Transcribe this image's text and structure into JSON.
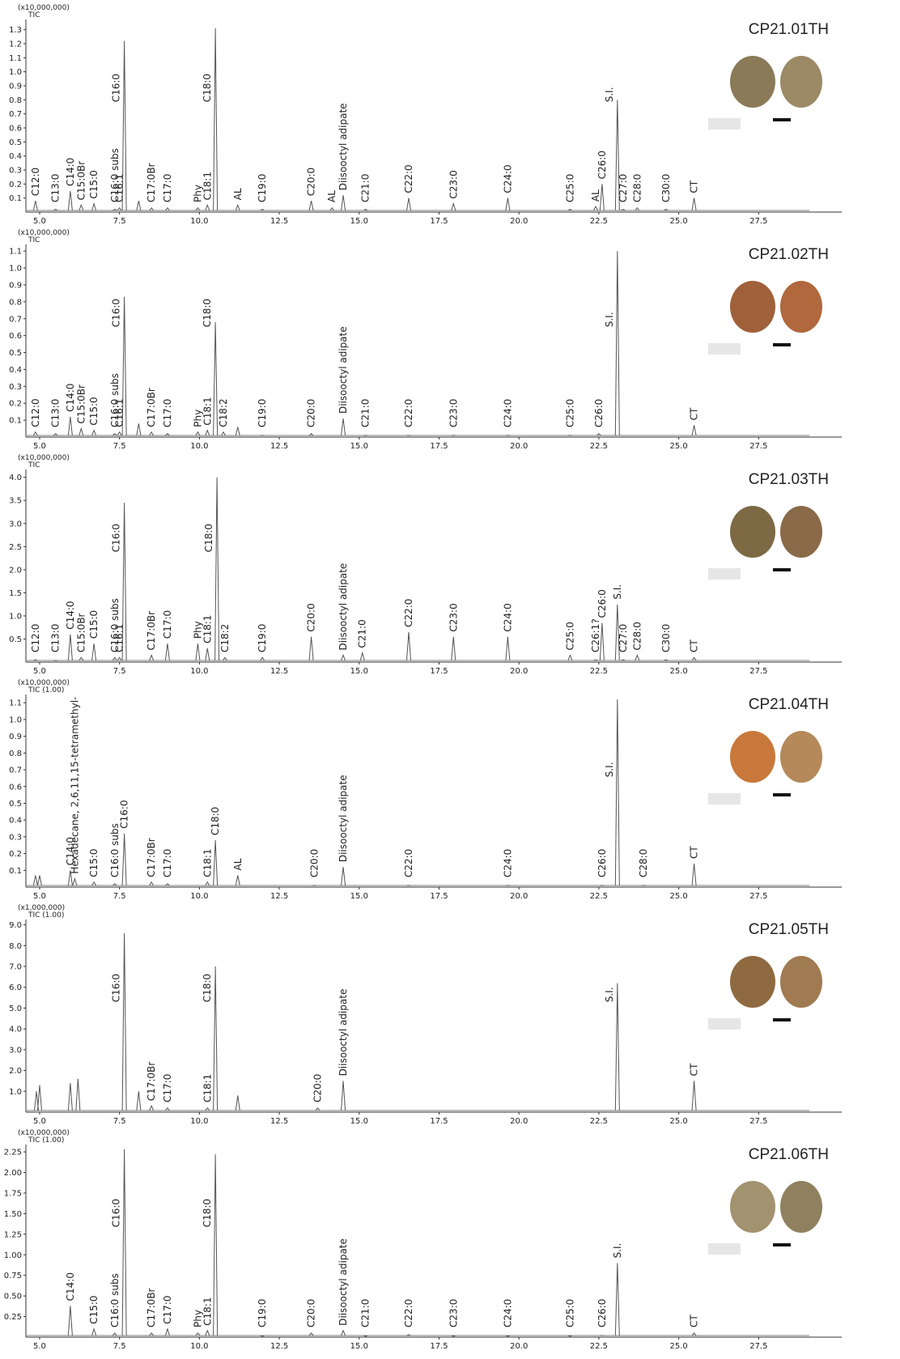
{
  "chart_data": [
    {
      "type": "line",
      "title": "CP21.01TH",
      "y_unit": "(x10,000,000)",
      "y_label": "TIC",
      "color": "#555555",
      "x": [
        4.87,
        5.5,
        5.96,
        6.3,
        6.7,
        7.35,
        7.5,
        7.65,
        8.1,
        8.5,
        9.0,
        9.95,
        10.25,
        10.5,
        11.2,
        11.97,
        13.5,
        14.15,
        14.5,
        15.2,
        16.55,
        17.95,
        19.65,
        21.6,
        22.4,
        22.6,
        23.08,
        23.26,
        23.7,
        24.6,
        25.48
      ],
      "values": [
        0.08,
        0.02,
        0.15,
        0.05,
        0.06,
        0.02,
        0.03,
        1.22,
        0.08,
        0.03,
        0.03,
        0.03,
        0.05,
        1.31,
        0.05,
        0.02,
        0.08,
        0.03,
        0.12,
        0.02,
        0.1,
        0.06,
        0.1,
        0.02,
        0.04,
        0.2,
        0.8,
        0.02,
        0.03,
        0.02,
        0.1
      ],
      "labels": [
        "C12:0",
        "C13:0",
        "C14:0",
        "C15:0Br",
        "C15:0",
        "C16:0 subs",
        "C16:1",
        "C16:0",
        null,
        "C17:0Br",
        "C17:0",
        "Phy",
        "C18:1",
        "C18:0",
        "AL",
        "C19:0",
        "C20:0",
        "AL",
        "Diisooctyl adipate",
        "C21:0",
        "C22:0",
        "C23:0",
        "C24:0",
        "C25:0",
        "AL",
        "C26:0",
        "S.I.",
        "C27:0",
        "C28:0",
        "C30:0",
        "CT"
      ],
      "xlim": [
        4.57,
        30.1
      ],
      "xticks": [
        {
          "value": 5,
          "label": "5.0"
        },
        7.5,
        {
          "value": 10,
          "label": "10.0"
        },
        12.5,
        {
          "value": 15,
          "label": "15.0"
        },
        17.5,
        {
          "value": 20,
          "label": "20.0"
        },
        22.5,
        {
          "value": 25,
          "label": "25.0"
        },
        27.5
      ],
      "ylim": [
        0,
        1.35
      ],
      "yticks": [
        0.1,
        0.2,
        0.3,
        0.4,
        0.5,
        0.6,
        0.7,
        0.8,
        0.9,
        {
          "value": 1,
          "label": "1.0"
        },
        1.1,
        1.2,
        1.3
      ]
    },
    {
      "type": "line",
      "title": "CP21.02TH",
      "y_unit": "(x10,000,000)",
      "y_label": "TIC",
      "color": "#555555",
      "x": [
        4.87,
        5.5,
        5.96,
        6.3,
        6.7,
        7.35,
        7.5,
        7.65,
        8.1,
        8.5,
        9.0,
        9.95,
        10.25,
        10.5,
        10.75,
        11.2,
        11.97,
        13.5,
        14.5,
        15.2,
        16.55,
        17.95,
        19.65,
        21.6,
        22.5,
        23.08,
        25.48
      ],
      "values": [
        0.03,
        0.02,
        0.12,
        0.05,
        0.04,
        0.02,
        0.03,
        0.83,
        0.08,
        0.03,
        0.02,
        0.03,
        0.04,
        0.68,
        0.03,
        0.06,
        0.01,
        0.02,
        0.11,
        0.01,
        0.01,
        0.01,
        0.01,
        0.01,
        0.02,
        1.1,
        0.07
      ],
      "labels": [
        "C12:0",
        "C13:0",
        "C14:0",
        "C15:0Br",
        "C15:0",
        "C16:0 subs",
        "C16:1",
        "C16:0",
        null,
        "C17:0Br",
        "C17:0",
        "Phy",
        "C18:1",
        "C18:0",
        "C18:2",
        null,
        "C19:0",
        "C20:0",
        "Diisooctyl adipate",
        "C21:0",
        "C22:0",
        "C23:0",
        "C24:0",
        "C25:0",
        "C26:0",
        "S.I.",
        "CT"
      ],
      "xlim": [
        4.57,
        30.1
      ],
      "xticks": [
        {
          "value": 5,
          "label": "5.0"
        },
        7.5,
        {
          "value": 10,
          "label": "10.0"
        },
        12.5,
        {
          "value": 15,
          "label": "15.0"
        },
        17.5,
        {
          "value": 20,
          "label": "20.0"
        },
        22.5,
        {
          "value": 25,
          "label": "25.0"
        },
        27.5
      ],
      "ylim": [
        0,
        1.12
      ],
      "yticks": [
        0.1,
        0.2,
        0.3,
        0.4,
        0.5,
        0.6,
        0.7,
        0.8,
        0.9,
        {
          "value": 1,
          "label": "1.0"
        },
        1.1
      ]
    },
    {
      "type": "line",
      "title": "CP21.03TH",
      "y_unit": "(x10,000,000)",
      "y_label": "TIC",
      "color": "#555555",
      "x": [
        4.87,
        5.5,
        5.96,
        6.3,
        6.7,
        7.35,
        7.5,
        7.65,
        8.5,
        9.0,
        9.95,
        10.25,
        10.55,
        10.8,
        11.97,
        13.5,
        14.5,
        15.1,
        16.55,
        17.95,
        19.65,
        21.6,
        22.4,
        22.6,
        23.08,
        23.26,
        23.7,
        24.6,
        25.48
      ],
      "values": [
        0.05,
        0.03,
        0.6,
        0.1,
        0.4,
        0.1,
        0.1,
        3.45,
        0.15,
        0.4,
        0.4,
        0.3,
        4.0,
        0.1,
        0.1,
        0.55,
        0.15,
        0.2,
        0.65,
        0.55,
        0.55,
        0.15,
        0.05,
        0.85,
        1.25,
        0.05,
        0.15,
        0.05,
        0.1
      ],
      "labels": [
        "C12:0",
        "C13:0",
        "C14:0",
        "C15:0Br",
        "C15:0",
        "C16:0 subs",
        "C16:1",
        "C16:0",
        "C17:0Br",
        "C17:0",
        "Phy",
        "C18:1",
        "C18:0",
        "C18:2",
        "C19:0",
        "C20:0",
        "Diisooctyl adipate",
        "C21:0",
        "C22:0",
        "C23:0",
        "C24:0",
        "C25:0",
        "C26:1?",
        "C26:0",
        "S.I.",
        "C27:0",
        "C28:0",
        "C30:0",
        "CT"
      ],
      "xlim": [
        4.57,
        30.1
      ],
      "xticks": [
        {
          "value": 5,
          "label": "5.0"
        },
        7.5,
        {
          "value": 10,
          "label": "10.0"
        },
        12.5,
        {
          "value": 15,
          "label": "15.0"
        },
        17.5,
        {
          "value": 20,
          "label": "20.0"
        },
        22.5,
        {
          "value": 25,
          "label": "25.0"
        },
        27.5
      ],
      "ylim": [
        0,
        4.1
      ],
      "yticks": [
        0.5,
        {
          "value": 1,
          "label": "1.0"
        },
        1.5,
        {
          "value": 2,
          "label": "2.0"
        },
        2.5,
        {
          "value": 3,
          "label": "3.0"
        },
        3.5,
        {
          "value": 4,
          "label": "4.0"
        }
      ]
    },
    {
      "type": "line",
      "title": "CP21.04TH",
      "y_unit": "(x10,000,000)",
      "y_label": "TIC (1.00)",
      "color": "#555555",
      "x": [
        4.87,
        5.0,
        5.96,
        6.1,
        6.7,
        7.35,
        7.65,
        8.5,
        9.0,
        10.25,
        10.5,
        11.2,
        13.6,
        14.5,
        16.55,
        19.65,
        22.6,
        23.08,
        23.9,
        25.48
      ],
      "values": [
        0.07,
        0.07,
        0.1,
        0.05,
        0.03,
        0.02,
        0.32,
        0.03,
        0.02,
        0.03,
        0.28,
        0.07,
        0.01,
        0.12,
        0.01,
        0.01,
        0.01,
        1.12,
        0.01,
        0.14
      ],
      "labels": [
        null,
        null,
        "C14:0",
        "Hexadecane, 2,6,11,15-tetramethyl-",
        "C15:0",
        "C16:0 subs",
        "C16:0",
        "C17:0Br",
        "C17:0",
        "C18:1",
        "C18:0",
        "AL",
        "C20:0",
        "Diisooctyl adipate",
        "C22:0",
        "C24:0",
        "C26:0",
        "S.I.",
        "C28:0",
        "CT"
      ],
      "xlim": [
        4.57,
        30.1
      ],
      "xticks": [
        {
          "value": 5,
          "label": "5.0"
        },
        7.5,
        {
          "value": 10,
          "label": "10.0"
        },
        12.5,
        {
          "value": 15,
          "label": "15.0"
        },
        17.5,
        {
          "value": 20,
          "label": "20.0"
        },
        22.5,
        {
          "value": 25,
          "label": "25.0"
        },
        27.5
      ],
      "ylim": [
        0,
        1.13
      ],
      "yticks": [
        0.1,
        0.2,
        0.3,
        0.4,
        0.5,
        0.6,
        0.7,
        0.8,
        0.9,
        {
          "value": 1,
          "label": "1.0"
        },
        1.1
      ]
    },
    {
      "type": "line",
      "title": "CP21.05TH",
      "y_unit": "(x1,000,000)",
      "y_label": "TIC (1.00)",
      "color": "#555555",
      "x": [
        4.9,
        5.0,
        5.96,
        6.2,
        7.65,
        8.1,
        8.5,
        9.0,
        10.25,
        10.5,
        11.2,
        13.7,
        14.5,
        23.08,
        25.48
      ],
      "values": [
        1.0,
        1.3,
        1.4,
        1.6,
        8.6,
        1.0,
        0.3,
        0.2,
        0.2,
        7.0,
        0.8,
        0.2,
        1.5,
        6.2,
        1.5
      ],
      "labels": [
        null,
        null,
        null,
        null,
        "C16:0",
        null,
        "C17:0Br",
        "C17:0",
        "C18:1",
        "C18:0",
        null,
        "C20:0",
        "Diisooctyl adipate",
        "S.I.",
        "CT"
      ],
      "xlim": [
        4.57,
        30.1
      ],
      "xticks": [
        {
          "value": 5,
          "label": "5.0"
        },
        7.5,
        {
          "value": 10,
          "label": "10.0"
        },
        12.5,
        {
          "value": 15,
          "label": "15.0"
        },
        17.5,
        {
          "value": 20,
          "label": "20.0"
        },
        22.5,
        {
          "value": 25,
          "label": "25.0"
        },
        27.5
      ],
      "ylim": [
        0,
        9.1
      ],
      "yticks": [
        {
          "value": 1,
          "label": "1.0"
        },
        {
          "value": 2,
          "label": "2.0"
        },
        {
          "value": 3,
          "label": "3.0"
        },
        {
          "value": 4,
          "label": "4.0"
        },
        {
          "value": 5,
          "label": "5.0"
        },
        {
          "value": 6,
          "label": "6.0"
        },
        {
          "value": 7,
          "label": "7.0"
        },
        {
          "value": 8,
          "label": "8.0"
        },
        {
          "value": 9,
          "label": "9.0"
        }
      ]
    },
    {
      "type": "line",
      "title": "CP21.06TH",
      "y_unit": "(x10,000,000)",
      "y_label": "TIC (1.00)",
      "color": "#555555",
      "x": [
        5.96,
        6.7,
        7.35,
        7.65,
        8.5,
        9.0,
        9.95,
        10.25,
        10.5,
        11.97,
        13.5,
        14.5,
        15.2,
        16.55,
        17.95,
        19.65,
        21.6,
        22.6,
        23.08,
        25.48
      ],
      "values": [
        0.38,
        0.1,
        0.05,
        2.28,
        0.05,
        0.1,
        0.05,
        0.08,
        2.22,
        0.01,
        0.05,
        0.08,
        0.01,
        0.03,
        0.01,
        0.01,
        0.01,
        0.02,
        0.9,
        0.05
      ],
      "labels": [
        "C14:0",
        "C15:0",
        "C16:0 subs",
        "C16:0",
        "C17:0Br",
        "C17:0",
        "Phy",
        "C18:1",
        "C18:0",
        "C19:0",
        "C20:0",
        "Diisooctyl adipate",
        "C21:0",
        "C22:0",
        "C23:0",
        "C24:0",
        "C25:0",
        "C26:0",
        "S.I.",
        "CT"
      ],
      "xlim": [
        4.57,
        30.1
      ],
      "xticks": [
        {
          "value": 5,
          "label": "5.0"
        },
        7.5,
        {
          "value": 10,
          "label": "10.0"
        },
        12.5,
        {
          "value": 15,
          "label": "15.0"
        },
        17.5,
        {
          "value": 20,
          "label": "20.0"
        },
        22.5,
        {
          "value": 25,
          "label": "25.0"
        },
        27.5
      ],
      "ylim": [
        0,
        2.3
      ],
      "yticks": [
        {
          "value": 0.25,
          "label": "0.25"
        },
        {
          "value": 0.5,
          "label": "0.50"
        },
        {
          "value": 0.75,
          "label": "0.75"
        },
        {
          "value": 1,
          "label": "1.00"
        },
        {
          "value": 1.25,
          "label": "1.25"
        },
        {
          "value": 1.5,
          "label": "1.50"
        },
        {
          "value": 1.75,
          "label": "1.75"
        },
        {
          "value": 2,
          "label": "2.00"
        },
        {
          "value": 2.25,
          "label": "2.25"
        }
      ]
    }
  ]
}
